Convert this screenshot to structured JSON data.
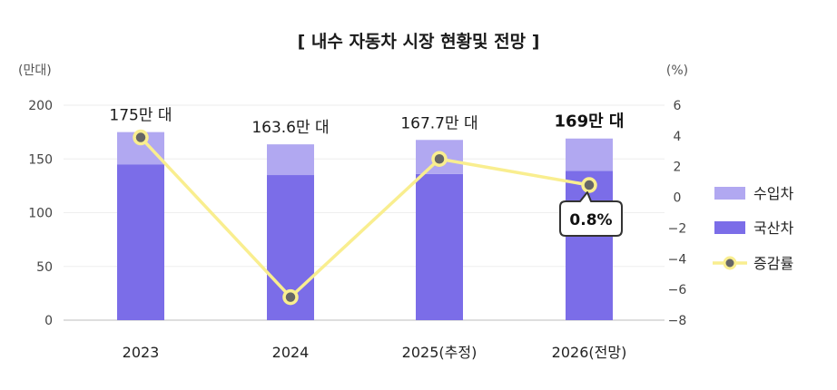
{
  "chart_data": {
    "type": "bar",
    "title": "[ 내수 자동차 시장 현황및 전망 ]",
    "y_left_unit": "(만대)",
    "y_right_unit": "(%)",
    "y_left_range": [
      0,
      200
    ],
    "y_left_ticks": [
      "0",
      "50",
      "100",
      "150",
      "200"
    ],
    "y_right_range": [
      -8,
      6
    ],
    "y_right_ticks": [
      "−8",
      "−6",
      "−4",
      "−2",
      "0",
      "2",
      "4",
      "6"
    ],
    "categories": [
      "2023",
      "2024",
      "2025(추정)",
      "2026(전망)"
    ],
    "totals": [
      "175만 대",
      "163.6만 대",
      "167.7만 대",
      "169만 대"
    ],
    "series": [
      {
        "name": "국산차",
        "type": "stacked-bar",
        "values": [
          145,
          135,
          136,
          139
        ]
      },
      {
        "name": "수입차",
        "type": "stacked-bar",
        "values": [
          30,
          28.6,
          31.7,
          30
        ]
      },
      {
        "name": "증감률",
        "type": "line",
        "axis": "right",
        "values": [
          3.9,
          -6.5,
          2.5,
          0.8
        ]
      }
    ],
    "callout": "0.8%",
    "legend_position": "right",
    "colors": {
      "domestic": "#7b6de8",
      "import": "#b1a8f1",
      "line": "#f9ee8f",
      "marker_fill": "#666666",
      "marker_stroke": "#f9ee8f"
    }
  }
}
